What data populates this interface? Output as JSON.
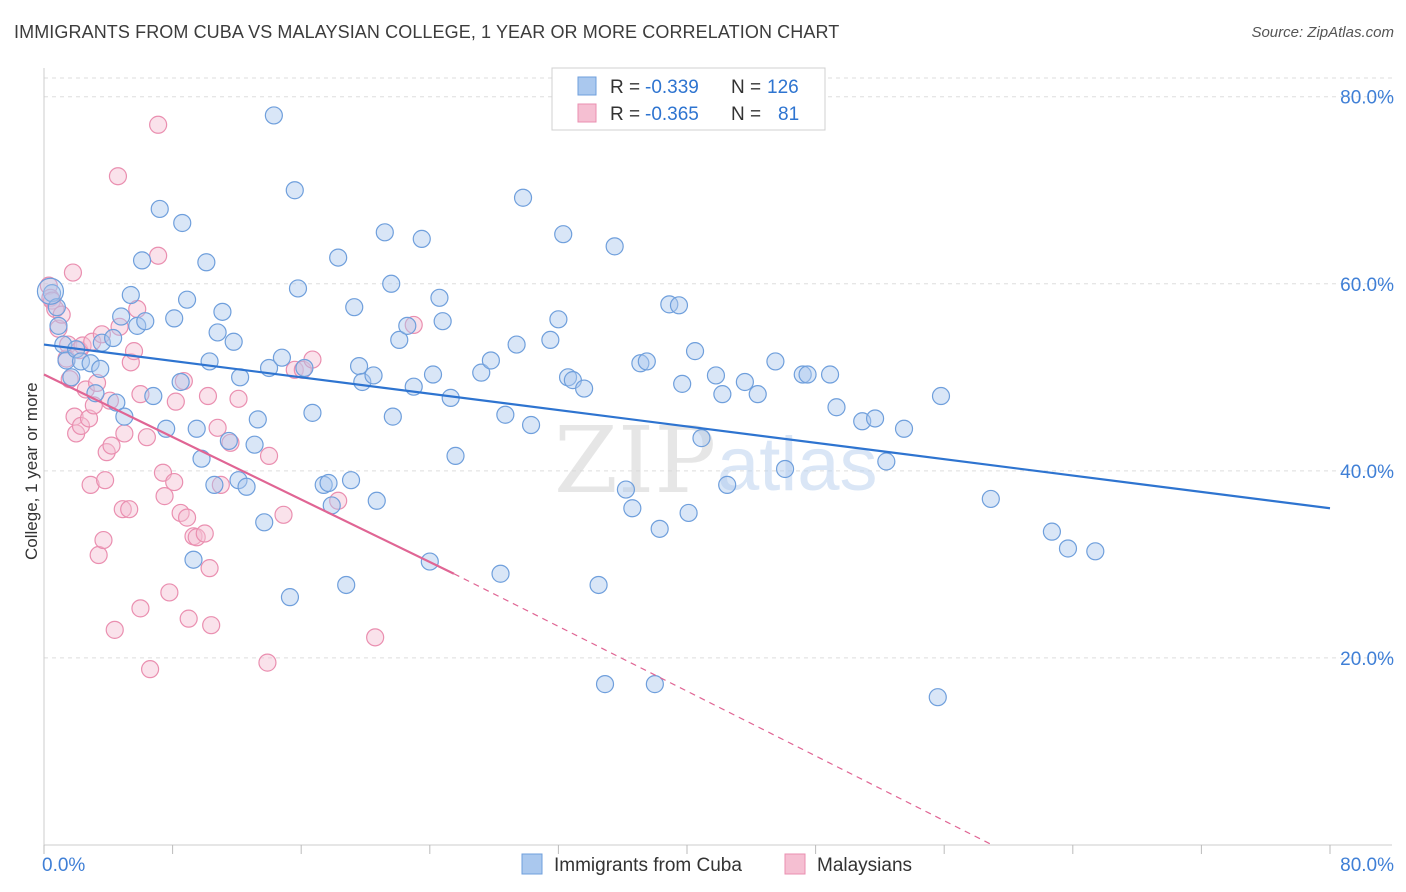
{
  "title": "IMMIGRANTS FROM CUBA VS MALAYSIAN COLLEGE, 1 YEAR OR MORE CORRELATION CHART",
  "source": "Source: ZipAtlas.com",
  "watermark": {
    "zip": "ZIP",
    "atlas": "atlas"
  },
  "legend_stats": [
    {
      "r_label": "R =",
      "r_value": "-0.339",
      "n_label": "N =",
      "n_value": "126"
    },
    {
      "r_label": "R =",
      "r_value": "-0.365",
      "n_label": "N =",
      "n_value": "81"
    }
  ],
  "chart_data": {
    "type": "scatter",
    "ylabel": "College, 1 year or more",
    "xlim": [
      0,
      80
    ],
    "ylim": [
      0,
      82
    ],
    "x_tick_labels": [
      "0.0%",
      "80.0%"
    ],
    "y_ticks": [
      20,
      40,
      60,
      80
    ],
    "y_tick_labels": [
      "20.0%",
      "40.0%",
      "60.0%",
      "80.0%"
    ],
    "colors": {
      "cuba_fill": "#aac8ee",
      "cuba_stroke": "#6f9fdc",
      "cuba_line": "#2e74d0",
      "malay_fill": "#f5bfd2",
      "malay_stroke": "#ea8fb0",
      "malay_line": "#e06594",
      "tick_text": "#3f7fd6",
      "grid": "#dddddd"
    },
    "series": [
      {
        "name": "Immigrants from Cuba",
        "trend": {
          "x0": 0,
          "y0": 53.5,
          "x1": 80,
          "y1": 36.0
        },
        "points": [
          [
            0.5,
            59
          ],
          [
            0.8,
            57.5
          ],
          [
            0.9,
            55.5
          ],
          [
            1.2,
            53.5
          ],
          [
            1.4,
            51.8
          ],
          [
            1.7,
            50
          ],
          [
            2,
            53
          ],
          [
            2.3,
            51.7
          ],
          [
            2.9,
            51.5
          ],
          [
            3.2,
            48.3
          ],
          [
            3.5,
            50.9
          ],
          [
            3.6,
            53.7
          ],
          [
            4.3,
            54.2
          ],
          [
            4.5,
            47.3
          ],
          [
            4.8,
            56.5
          ],
          [
            5,
            45.8
          ],
          [
            5.4,
            58.8
          ],
          [
            5.8,
            55.5
          ],
          [
            6.1,
            62.5
          ],
          [
            6.3,
            56
          ],
          [
            6.8,
            48
          ],
          [
            7.2,
            68
          ],
          [
            7.6,
            44.5
          ],
          [
            8.1,
            56.3
          ],
          [
            8.5,
            49.5
          ],
          [
            8.6,
            66.5
          ],
          [
            8.9,
            58.3
          ],
          [
            9.3,
            30.5
          ],
          [
            9.5,
            44.5
          ],
          [
            9.8,
            41.3
          ],
          [
            10.1,
            62.3
          ],
          [
            10.3,
            51.7
          ],
          [
            10.6,
            38.5
          ],
          [
            10.8,
            54.8
          ],
          [
            11.1,
            57
          ],
          [
            11.5,
            43.2
          ],
          [
            11.8,
            53.8
          ],
          [
            12.1,
            39
          ],
          [
            12.2,
            50
          ],
          [
            12.6,
            38.3
          ],
          [
            13.1,
            42.8
          ],
          [
            13.3,
            45.5
          ],
          [
            13.7,
            34.5
          ],
          [
            14,
            51
          ],
          [
            14.3,
            78
          ],
          [
            14.8,
            52.1
          ],
          [
            15.3,
            26.5
          ],
          [
            15.6,
            70
          ],
          [
            15.8,
            59.5
          ],
          [
            16.2,
            51
          ],
          [
            16.7,
            46.2
          ],
          [
            17.4,
            38.5
          ],
          [
            17.7,
            38.7
          ],
          [
            17.9,
            36.3
          ],
          [
            18.3,
            62.8
          ],
          [
            18.8,
            27.8
          ],
          [
            19.1,
            39
          ],
          [
            19.3,
            57.5
          ],
          [
            19.6,
            51.2
          ],
          [
            19.8,
            49.5
          ],
          [
            20.5,
            50.2
          ],
          [
            20.7,
            36.8
          ],
          [
            21.2,
            65.5
          ],
          [
            21.6,
            60
          ],
          [
            21.7,
            45.8
          ],
          [
            22.1,
            54
          ],
          [
            22.6,
            55.5
          ],
          [
            23,
            49
          ],
          [
            23.5,
            64.8
          ],
          [
            24,
            30.3
          ],
          [
            24.2,
            50.3
          ],
          [
            24.6,
            58.5
          ],
          [
            24.8,
            56
          ],
          [
            25.3,
            47.8
          ],
          [
            25.6,
            41.6
          ],
          [
            27.2,
            50.5
          ],
          [
            27.8,
            51.8
          ],
          [
            28.4,
            29
          ],
          [
            28.7,
            46
          ],
          [
            29.4,
            53.5
          ],
          [
            29.8,
            69.2
          ],
          [
            30.3,
            44.9
          ],
          [
            31.5,
            54
          ],
          [
            32,
            56.2
          ],
          [
            32.3,
            65.3
          ],
          [
            32.6,
            50
          ],
          [
            32.9,
            49.7
          ],
          [
            33.6,
            48.8
          ],
          [
            34.5,
            27.8
          ],
          [
            34.9,
            17.2
          ],
          [
            35.5,
            64
          ],
          [
            36.2,
            38
          ],
          [
            36.6,
            36
          ],
          [
            37.1,
            51.5
          ],
          [
            37.5,
            51.7
          ],
          [
            38,
            17.2
          ],
          [
            38.3,
            33.8
          ],
          [
            38.9,
            57.8
          ],
          [
            39.5,
            57.7
          ],
          [
            39.7,
            49.3
          ],
          [
            40.1,
            35.5
          ],
          [
            40.5,
            52.8
          ],
          [
            40.9,
            43.5
          ],
          [
            41.8,
            50.2
          ],
          [
            42.2,
            48.2
          ],
          [
            42.5,
            38.5
          ],
          [
            43.6,
            49.5
          ],
          [
            44.4,
            48.2
          ],
          [
            45.5,
            51.7
          ],
          [
            46.1,
            40.2
          ],
          [
            47.2,
            50.3
          ],
          [
            47.5,
            50.3
          ],
          [
            48.9,
            50.3
          ],
          [
            49.3,
            46.8
          ],
          [
            50.9,
            45.3
          ],
          [
            51.7,
            45.6
          ],
          [
            52.4,
            41
          ],
          [
            53.5,
            44.5
          ],
          [
            55.6,
            15.8
          ],
          [
            55.8,
            48
          ],
          [
            58.9,
            37
          ],
          [
            62.7,
            33.5
          ],
          [
            63.7,
            31.7
          ],
          [
            65.4,
            31.4
          ]
        ]
      },
      {
        "name": "Malaysians",
        "trend": {
          "x0": 0,
          "y0": 50.3,
          "x1": 25.5,
          "y1": 29.0
        },
        "trend_dashed": {
          "x0": 25.5,
          "y0": 29.0,
          "x1": 59,
          "y1": 0
        },
        "points": [
          [
            0.3,
            59.8
          ],
          [
            0.4,
            58.5
          ],
          [
            0.5,
            58.2
          ],
          [
            0.7,
            57.3
          ],
          [
            0.9,
            55.2
          ],
          [
            1.1,
            56.7
          ],
          [
            1.4,
            52
          ],
          [
            1.5,
            53.5
          ],
          [
            1.6,
            49.8
          ],
          [
            1.8,
            61.2
          ],
          [
            1.9,
            45.8
          ],
          [
            2,
            44
          ],
          [
            2.2,
            52.9
          ],
          [
            2.3,
            44.8
          ],
          [
            2.4,
            53.4
          ],
          [
            2.6,
            48.7
          ],
          [
            2.8,
            45.6
          ],
          [
            2.9,
            38.5
          ],
          [
            3,
            53.8
          ],
          [
            3.1,
            47
          ],
          [
            3.3,
            49.4
          ],
          [
            3.4,
            31
          ],
          [
            3.6,
            54.6
          ],
          [
            3.7,
            32.6
          ],
          [
            3.8,
            39
          ],
          [
            3.9,
            42
          ],
          [
            4.1,
            47.5
          ],
          [
            4.2,
            42.7
          ],
          [
            4.4,
            23
          ],
          [
            4.6,
            71.5
          ],
          [
            4.7,
            55.4
          ],
          [
            4.9,
            35.9
          ],
          [
            5,
            44
          ],
          [
            5.3,
            35.9
          ],
          [
            5.4,
            51.6
          ],
          [
            5.6,
            52.8
          ],
          [
            5.8,
            57.3
          ],
          [
            6,
            48.2
          ],
          [
            6,
            25.3
          ],
          [
            6.4,
            43.6
          ],
          [
            6.6,
            18.8
          ],
          [
            7.1,
            63
          ],
          [
            7.1,
            77
          ],
          [
            7.4,
            39.8
          ],
          [
            7.5,
            37.3
          ],
          [
            7.8,
            27
          ],
          [
            8.1,
            38.8
          ],
          [
            8.2,
            47.4
          ],
          [
            8.5,
            35.5
          ],
          [
            8.7,
            49.6
          ],
          [
            8.9,
            35
          ],
          [
            9,
            24.2
          ],
          [
            9.3,
            33
          ],
          [
            9.5,
            32.9
          ],
          [
            10,
            33.3
          ],
          [
            10.2,
            48
          ],
          [
            10.3,
            29.6
          ],
          [
            10.4,
            23.5
          ],
          [
            10.8,
            44.6
          ],
          [
            11,
            38.5
          ],
          [
            11.6,
            43
          ],
          [
            12.1,
            47.7
          ],
          [
            13.9,
            19.5
          ],
          [
            14,
            41.6
          ],
          [
            14.9,
            35.3
          ],
          [
            15.6,
            50.8
          ],
          [
            16.1,
            50.8
          ],
          [
            16.7,
            51.9
          ],
          [
            18.3,
            36.8
          ],
          [
            20.6,
            22.2
          ],
          [
            23,
            55.6
          ]
        ]
      }
    ]
  },
  "bottom_legend": [
    "Immigrants from Cuba",
    "Malaysians"
  ]
}
